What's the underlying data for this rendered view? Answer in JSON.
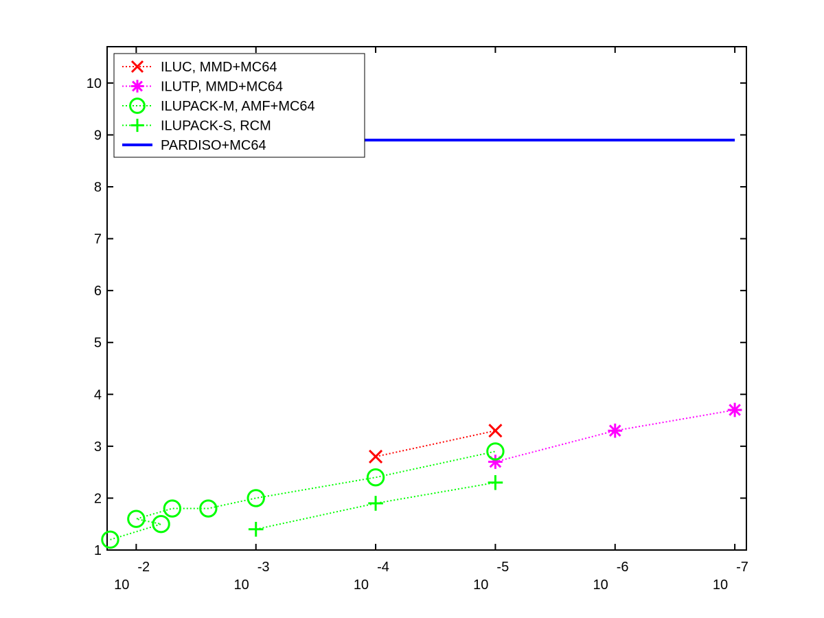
{
  "chart_data": {
    "type": "line",
    "x_scale": "log",
    "x_axis_reversed": true,
    "xlim": [
      0.0175,
      8e-08
    ],
    "ylim": [
      1,
      10.7
    ],
    "grid": false,
    "legend_placement": "top-left",
    "y_ticks": [
      1,
      2,
      3,
      4,
      5,
      6,
      7,
      8,
      9,
      10
    ],
    "x_ticks": [
      {
        "value": 0.01,
        "base": "10",
        "exponent": "-2"
      },
      {
        "value": 0.001,
        "base": "10",
        "exponent": "-3"
      },
      {
        "value": 0.0001,
        "base": "10",
        "exponent": "-4"
      },
      {
        "value": 1e-05,
        "base": "10",
        "exponent": "-5"
      },
      {
        "value": 1e-06,
        "base": "10",
        "exponent": "-6"
      },
      {
        "value": 1e-07,
        "base": "10",
        "exponent": "-7"
      }
    ],
    "series": [
      {
        "name": "ILUC, MMD+MC64",
        "color": "#ff0000",
        "marker": "x",
        "line": "dotted",
        "x": [
          0.0001,
          1e-05
        ],
        "y": [
          2.8,
          3.3
        ]
      },
      {
        "name": "ILUTP, MMD+MC64",
        "color": "#ff00ff",
        "marker": "asterisk",
        "line": "dotted",
        "x": [
          1e-05,
          1e-06,
          1e-07
        ],
        "y": [
          2.7,
          3.3,
          3.7
        ]
      },
      {
        "name": "ILUPACK-M, AMF+MC64",
        "color": "#00ff00",
        "marker": "circle",
        "line": "dotted",
        "x": [
          0.0165,
          0.0062,
          0.01,
          0.005,
          0.0025,
          0.001,
          0.0001,
          1e-05
        ],
        "y": [
          1.2,
          1.5,
          1.6,
          1.8,
          1.8,
          2.0,
          2.4,
          2.9
        ]
      },
      {
        "name": "ILUPACK-S, RCM",
        "color": "#00ff00",
        "marker": "plus",
        "line": "dotted",
        "x": [
          0.001,
          0.0001,
          1e-05
        ],
        "y": [
          1.4,
          1.9,
          2.3
        ]
      },
      {
        "name": "PARDISO+MC64",
        "color": "#0000ff",
        "marker": "none",
        "line": "solid",
        "x": [
          0.0012,
          1e-07
        ],
        "y": [
          8.9,
          8.9
        ]
      }
    ]
  }
}
